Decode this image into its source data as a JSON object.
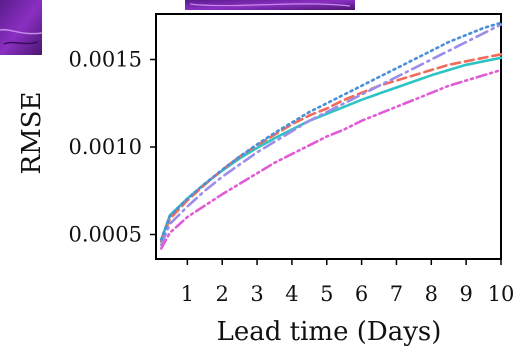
{
  "chart_data": {
    "type": "line",
    "title": "",
    "xlabel": "Lead time (Days)",
    "ylabel": "RMSE",
    "xlim": [
      0.1,
      10.0
    ],
    "ylim": [
      0.00036,
      0.00176
    ],
    "grid": false,
    "x_ticks": [
      1,
      2,
      3,
      4,
      5,
      6,
      7,
      8,
      9,
      10
    ],
    "x_tick_labels": [
      "1",
      "2",
      "3",
      "4",
      "5",
      "6",
      "7",
      "8",
      "9",
      "10"
    ],
    "y_ticks": [
      0.0005,
      0.001,
      0.0015
    ],
    "y_tick_labels": [
      "0.0005",
      "0.0010",
      "0.0015"
    ],
    "x": [
      0.25,
      0.5,
      1.0,
      1.5,
      2.0,
      2.5,
      3.0,
      3.5,
      4.0,
      4.5,
      5.0,
      5.5,
      6.0,
      6.5,
      7.0,
      7.5,
      8.0,
      8.5,
      9.0,
      9.5,
      10.0
    ],
    "series": [
      {
        "color": "#2ec4c4",
        "dash": "solid",
        "values": [
          0.00047,
          0.00061,
          0.000705,
          0.00079,
          0.000865,
          0.000935,
          0.000995,
          0.00105,
          0.0011,
          0.00115,
          0.00119,
          0.00123,
          0.00127,
          0.001305,
          0.00134,
          0.001375,
          0.00141,
          0.00144,
          0.00147,
          0.00149,
          0.00151
        ]
      },
      {
        "color": "#f26b5b",
        "dash": "dashed",
        "values": [
          0.00046,
          0.00059,
          0.000695,
          0.000785,
          0.00087,
          0.000945,
          0.00101,
          0.00107,
          0.00113,
          0.00118,
          0.00122,
          0.00127,
          0.00131,
          0.00135,
          0.00138,
          0.00141,
          0.00144,
          0.00147,
          0.00149,
          0.00151,
          0.00153
        ]
      },
      {
        "color": "#9b8ee8",
        "dash": "dashdot",
        "values": [
          0.00044,
          0.00056,
          0.00066,
          0.00075,
          0.00083,
          0.0009,
          0.00097,
          0.00103,
          0.00109,
          0.00115,
          0.0012,
          0.00125,
          0.0013,
          0.00135,
          0.0014,
          0.00145,
          0.0015,
          0.00155,
          0.0016,
          0.00165,
          0.0017
        ]
      },
      {
        "color": "#4a90d9",
        "dash": "dotted",
        "values": [
          0.00047,
          0.000605,
          0.000705,
          0.00079,
          0.00087,
          0.000945,
          0.001015,
          0.00108,
          0.00114,
          0.0012,
          0.00125,
          0.0013,
          0.00135,
          0.0014,
          0.00145,
          0.0015,
          0.00155,
          0.0016,
          0.00164,
          0.00168,
          0.00171
        ]
      },
      {
        "color": "#e05cd6",
        "dash": "dashdotdot",
        "values": [
          0.00042,
          0.00051,
          0.0006,
          0.000665,
          0.00073,
          0.00079,
          0.00085,
          0.00091,
          0.00096,
          0.00101,
          0.00106,
          0.0011,
          0.00115,
          0.00119,
          0.00123,
          0.00127,
          0.00131,
          0.00135,
          0.00138,
          0.00141,
          0.00144
        ]
      }
    ]
  }
}
